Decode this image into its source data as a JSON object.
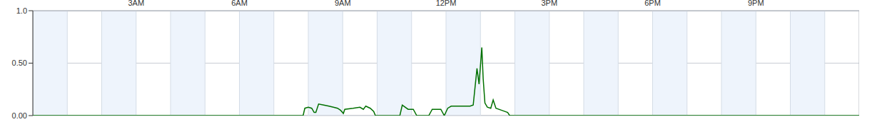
{
  "chart_data": {
    "type": "line",
    "color": "#007000",
    "grid": true,
    "xlim": [
      0,
      24
    ],
    "xticks": [
      {
        "value": 3,
        "label": "3AM"
      },
      {
        "value": 6,
        "label": "6AM"
      },
      {
        "value": 9,
        "label": "9AM"
      },
      {
        "value": 12,
        "label": "12PM"
      },
      {
        "value": 15,
        "label": "3PM"
      },
      {
        "value": 18,
        "label": "6PM"
      },
      {
        "value": 21,
        "label": "9PM"
      }
    ],
    "ylim": [
      0,
      1
    ],
    "yticks": [
      {
        "value": 0,
        "label": "0.00"
      },
      {
        "value": 0.5,
        "label": "0.50"
      },
      {
        "value": 1,
        "label": "1.0"
      }
    ],
    "x": [
      0,
      7.85,
      7.9,
      8.0,
      8.1,
      8.17,
      8.22,
      8.3,
      8.45,
      8.6,
      8.73,
      8.85,
      8.94,
      9.02,
      9.06,
      9.3,
      9.5,
      9.6,
      9.67,
      9.8,
      9.9,
      9.95,
      10.4,
      10.66,
      10.73,
      10.9,
      11.05,
      11.15,
      11.5,
      11.6,
      11.85,
      11.95,
      12.05,
      12.15,
      12.4,
      12.7,
      12.79,
      12.9,
      12.96,
      13.04,
      13.08,
      13.13,
      13.2,
      13.3,
      13.37,
      13.45,
      13.62,
      13.79,
      13.85,
      24
    ],
    "values": [
      0,
      0,
      0.07,
      0.08,
      0.07,
      0.03,
      0.03,
      0.11,
      0.1,
      0.09,
      0.08,
      0.07,
      0.05,
      0.02,
      0.06,
      0.07,
      0.08,
      0.06,
      0.09,
      0.07,
      0.04,
      0,
      0,
      0,
      0.1,
      0.06,
      0.06,
      0,
      0,
      0.06,
      0.06,
      0,
      0.07,
      0.09,
      0.09,
      0.09,
      0.1,
      0.45,
      0.3,
      0.65,
      0.35,
      0.12,
      0.08,
      0.07,
      0.15,
      0.07,
      0.05,
      0.03,
      0,
      0
    ]
  }
}
